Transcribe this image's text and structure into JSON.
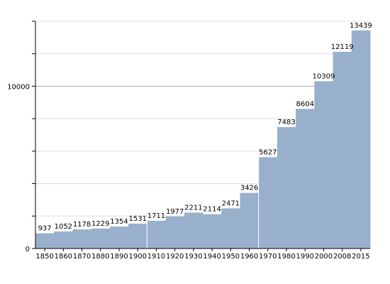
{
  "chart_data": {
    "type": "bar",
    "categories": [
      "1850",
      "1860",
      "1870",
      "1880",
      "1890",
      "1900",
      "1910",
      "1920",
      "1930",
      "1940",
      "1950",
      "1960",
      "1970",
      "1980",
      "1990",
      "2000",
      "2008",
      "2015"
    ],
    "values": [
      937,
      1052,
      1178,
      1229,
      1354,
      1531,
      1711,
      1977,
      2211,
      2114,
      2471,
      3426,
      5627,
      7483,
      8604,
      10309,
      12119,
      13439
    ],
    "title": "",
    "xlabel": "",
    "ylabel": "",
    "ylim": [
      0,
      14000
    ],
    "y_major_ticks": [
      0,
      10000
    ],
    "y_minor_step": 2000,
    "grid": true,
    "bar_color": "#98b0cb",
    "grid_color": "#aaaaaa",
    "minor_grid_color": "#dddddd"
  }
}
